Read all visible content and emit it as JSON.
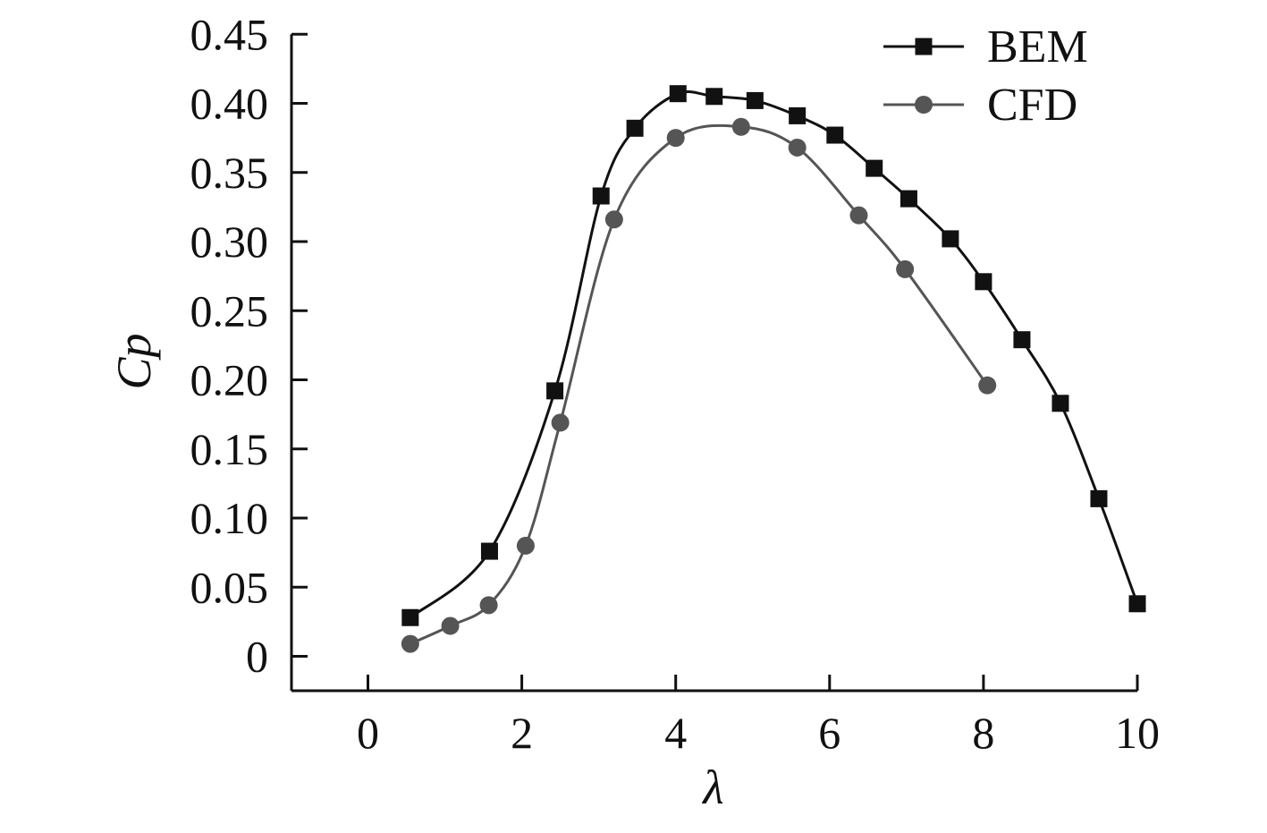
{
  "chart_data": {
    "type": "line",
    "title": "",
    "xlabel": "λ",
    "ylabel": "Cp",
    "xlim": [
      -1,
      10
    ],
    "ylim": [
      -0.025,
      0.45
    ],
    "x_ticks": [
      0,
      2,
      4,
      6,
      8,
      10
    ],
    "x_tick_labels": [
      "0",
      "2",
      "4",
      "6",
      "8",
      "10"
    ],
    "y_ticks": [
      0,
      0.05,
      0.1,
      0.15,
      0.2,
      0.25,
      0.3,
      0.35,
      0.4,
      0.45
    ],
    "y_tick_labels": [
      "0",
      "0.05",
      "0.10",
      "0.15",
      "0.20",
      "0.25",
      "0.30",
      "0.35",
      "0.40",
      "0.45"
    ],
    "grid": false,
    "legend_position": "top-right",
    "series": [
      {
        "name": "BEM",
        "marker": "square",
        "color": "#111111",
        "x": [
          0.55,
          1.58,
          2.43,
          3.03,
          3.47,
          4.03,
          4.5,
          5.03,
          5.58,
          6.07,
          6.58,
          7.03,
          7.57,
          8.0,
          8.5,
          9.0,
          9.5,
          10.0
        ],
        "y": [
          0.028,
          0.076,
          0.192,
          0.333,
          0.382,
          0.407,
          0.405,
          0.402,
          0.391,
          0.377,
          0.353,
          0.331,
          0.302,
          0.271,
          0.229,
          0.183,
          0.114,
          0.038
        ]
      },
      {
        "name": "CFD",
        "marker": "circle",
        "color": "#555555",
        "x": [
          0.55,
          1.07,
          1.57,
          2.05,
          2.5,
          3.2,
          4.0,
          4.85,
          5.58,
          6.38,
          6.98,
          8.05
        ],
        "y": [
          0.009,
          0.022,
          0.037,
          0.08,
          0.169,
          0.316,
          0.375,
          0.383,
          0.368,
          0.319,
          0.28,
          0.196
        ]
      }
    ]
  }
}
